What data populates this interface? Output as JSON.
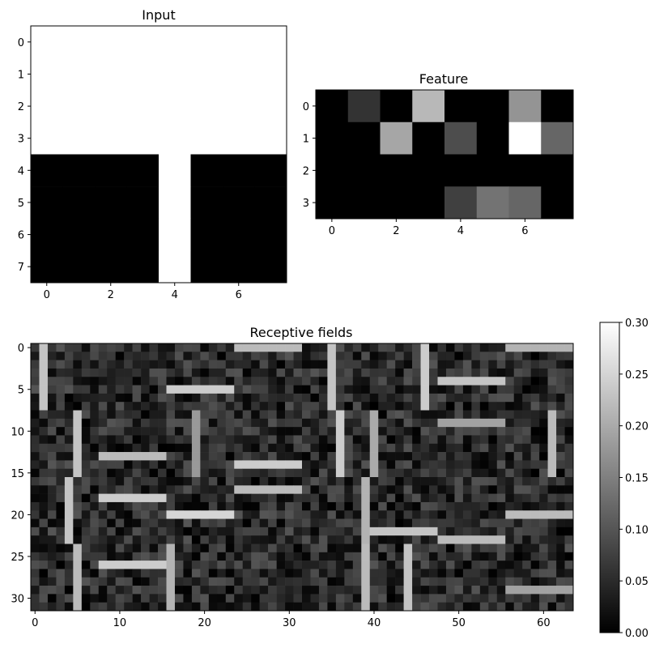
{
  "figure": {
    "colors": {
      "background": "#ffffff",
      "axis": "#000000"
    }
  },
  "chart_data": [
    {
      "type": "heatmap",
      "title": "Input",
      "colormap": "gray",
      "rows": 8,
      "cols": 8,
      "x_ticks": [
        0,
        2,
        4,
        6
      ],
      "y_ticks": [
        0,
        1,
        2,
        3,
        4,
        5,
        6,
        7
      ],
      "values": [
        [
          1,
          1,
          1,
          1,
          1,
          1,
          1,
          1
        ],
        [
          1,
          1,
          1,
          1,
          1,
          1,
          1,
          1
        ],
        [
          1,
          1,
          1,
          1,
          1,
          1,
          1,
          1
        ],
        [
          1,
          1,
          1,
          1,
          1,
          1,
          1,
          1
        ],
        [
          0,
          0,
          0,
          0,
          1,
          0,
          0,
          0
        ],
        [
          0,
          0,
          0,
          0,
          1,
          0,
          0,
          0
        ],
        [
          0,
          0,
          0,
          0,
          1,
          0,
          0,
          0
        ],
        [
          0,
          0,
          0,
          0,
          1,
          0,
          0,
          0
        ]
      ]
    },
    {
      "type": "heatmap",
      "title": "Feature",
      "colormap": "gray",
      "rows": 4,
      "cols": 8,
      "x_ticks": [
        0,
        2,
        4,
        6
      ],
      "y_ticks": [
        0,
        1,
        2,
        3
      ],
      "values": [
        [
          0.0,
          0.2,
          0.0,
          0.72,
          0.0,
          0.0,
          0.58,
          0.0
        ],
        [
          0.0,
          0.0,
          0.65,
          0.0,
          0.3,
          0.0,
          1.0,
          0.4
        ],
        [
          0.0,
          0.0,
          0.0,
          0.0,
          0.0,
          0.0,
          0.0,
          0.0
        ],
        [
          0.0,
          0.0,
          0.0,
          0.0,
          0.25,
          0.45,
          0.4,
          0.0
        ]
      ]
    },
    {
      "type": "heatmap",
      "title": "Receptive fields",
      "colormap": "gray",
      "rows": 32,
      "cols": 64,
      "block_grid": {
        "block_rows": 4,
        "block_cols": 8,
        "block_size": 8
      },
      "background_range": [
        0.0,
        0.1
      ],
      "x_ticks": [
        0,
        10,
        20,
        30,
        40,
        50,
        60
      ],
      "y_ticks": [
        0,
        5,
        10,
        15,
        20,
        25,
        30
      ],
      "colorbar": {
        "range": [
          0.0,
          0.3
        ],
        "ticks": [
          "0.00",
          "0.05",
          "0.10",
          "0.15",
          "0.20",
          "0.25",
          "0.30"
        ]
      },
      "strokes": [
        {
          "block": [
            0,
            0
          ],
          "orientation": "vertical",
          "index": 1,
          "value": 0.23
        },
        {
          "block": [
            0,
            2
          ],
          "orientation": "horizontal",
          "index": 5,
          "value": 0.24
        },
        {
          "block": [
            0,
            3
          ],
          "orientation": "horizontal",
          "index": 0,
          "value": 0.22
        },
        {
          "block": [
            0,
            4
          ],
          "orientation": "vertical",
          "index": 3,
          "value": 0.23
        },
        {
          "block": [
            0,
            5
          ],
          "orientation": "vertical",
          "index": 6,
          "value": 0.24
        },
        {
          "block": [
            0,
            6
          ],
          "orientation": "horizontal",
          "index": 4,
          "value": 0.23
        },
        {
          "block": [
            0,
            7
          ],
          "orientation": "horizontal",
          "index": 0,
          "value": 0.21
        },
        {
          "block": [
            1,
            0
          ],
          "orientation": "vertical",
          "index": 5,
          "value": 0.23
        },
        {
          "block": [
            1,
            1
          ],
          "orientation": "horizontal",
          "index": 5,
          "value": 0.22
        },
        {
          "block": [
            1,
            2
          ],
          "orientation": "vertical",
          "index": 3,
          "value": 0.18
        },
        {
          "block": [
            1,
            3
          ],
          "orientation": "horizontal",
          "index": 6,
          "value": 0.24
        },
        {
          "block": [
            1,
            4
          ],
          "orientation": "vertical",
          "index": 4,
          "value": 0.24
        },
        {
          "block": [
            1,
            5
          ],
          "orientation": "vertical",
          "index": 0,
          "value": 0.2
        },
        {
          "block": [
            1,
            6
          ],
          "orientation": "horizontal",
          "index": 1,
          "value": 0.19
        },
        {
          "block": [
            1,
            7
          ],
          "orientation": "vertical",
          "index": 5,
          "value": 0.22
        },
        {
          "block": [
            2,
            0
          ],
          "orientation": "vertical",
          "index": 4,
          "value": 0.23
        },
        {
          "block": [
            2,
            1
          ],
          "orientation": "horizontal",
          "index": 2,
          "value": 0.24
        },
        {
          "block": [
            2,
            2
          ],
          "orientation": "horizontal",
          "index": 4,
          "value": 0.25
        },
        {
          "block": [
            2,
            3
          ],
          "orientation": "horizontal",
          "index": 1,
          "value": 0.22
        },
        {
          "block": [
            2,
            4
          ],
          "orientation": "vertical",
          "index": 7,
          "value": 0.21
        },
        {
          "block": [
            2,
            5
          ],
          "orientation": "horizontal",
          "index": 6,
          "value": 0.23
        },
        {
          "block": [
            2,
            6
          ],
          "orientation": "horizontal",
          "index": 7,
          "value": 0.22
        },
        {
          "block": [
            2,
            7
          ],
          "orientation": "horizontal",
          "index": 4,
          "value": 0.22
        },
        {
          "block": [
            3,
            0
          ],
          "orientation": "vertical",
          "index": 5,
          "value": 0.22
        },
        {
          "block": [
            3,
            1
          ],
          "orientation": "horizontal",
          "index": 2,
          "value": 0.24
        },
        {
          "block": [
            3,
            2
          ],
          "orientation": "vertical",
          "index": 0,
          "value": 0.21
        },
        {
          "block": [
            3,
            4
          ],
          "orientation": "vertical",
          "index": 7,
          "value": 0.22
        },
        {
          "block": [
            3,
            5
          ],
          "orientation": "vertical",
          "index": 4,
          "value": 0.23
        },
        {
          "block": [
            3,
            7
          ],
          "orientation": "horizontal",
          "index": 5,
          "value": 0.19
        }
      ]
    }
  ]
}
